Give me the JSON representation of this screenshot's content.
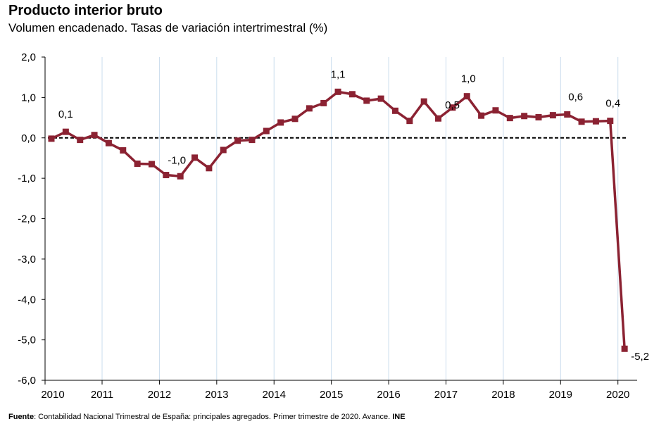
{
  "chart_data": {
    "type": "line",
    "title": "Producto interior bruto",
    "subtitle": "Volumen encadenado. Tasas de variación intertrimestral (%)",
    "ylim": [
      -6.0,
      2.0
    ],
    "y_ticks": [
      "2,0",
      "1,0",
      "0,0",
      "-1,0",
      "-2,0",
      "-3,0",
      "-4,0",
      "-5,0",
      "-6,0"
    ],
    "y_tick_values": [
      2,
      1,
      0,
      -1,
      -2,
      -3,
      -4,
      -5,
      -6
    ],
    "x_ticks": [
      "2010",
      "2011",
      "2012",
      "2013",
      "2014",
      "2015",
      "2016",
      "2017",
      "2018",
      "2019",
      "2020"
    ],
    "grid": "vertical",
    "reference_line": {
      "value": 0,
      "style": "dashed"
    },
    "color": "#8b2232",
    "series": [
      {
        "x": [
          "2010-T1",
          "2010-T2",
          "2010-T3",
          "2010-T4",
          "2011-T1",
          "2011-T2",
          "2011-T3",
          "2011-T4",
          "2012-T1",
          "2012-T2",
          "2012-T3",
          "2012-T4",
          "2013-T1",
          "2013-T2",
          "2013-T3",
          "2013-T4",
          "2014-T1",
          "2014-T2",
          "2014-T3",
          "2014-T4",
          "2015-T1",
          "2015-T2",
          "2015-T3",
          "2015-T4",
          "2016-T1",
          "2016-T2",
          "2016-T3",
          "2016-T4",
          "2017-T1",
          "2017-T2",
          "2017-T3",
          "2017-T4",
          "2018-T1",
          "2018-T2",
          "2018-T3",
          "2018-T4",
          "2019-T1",
          "2019-T2",
          "2019-T3",
          "2019-T4",
          "2020-T1"
        ],
        "values": [
          -0.02,
          0.15,
          -0.05,
          0.07,
          -0.13,
          -0.31,
          -0.64,
          -0.65,
          -0.92,
          -0.95,
          -0.49,
          -0.75,
          -0.3,
          -0.07,
          -0.05,
          0.17,
          0.38,
          0.47,
          0.73,
          0.86,
          1.14,
          1.08,
          0.92,
          0.97,
          0.67,
          0.42,
          0.9,
          0.48,
          0.75,
          1.03,
          0.55,
          0.68,
          0.49,
          0.54,
          0.51,
          0.56,
          0.58,
          0.4,
          0.41,
          0.42,
          -5.22
        ]
      }
    ],
    "data_labels": [
      {
        "index": 1,
        "text": "0,1"
      },
      {
        "index": 9,
        "text": "-1,0"
      },
      {
        "index": 20,
        "text": "1,1"
      },
      {
        "index": 27,
        "text": "0,5"
      },
      {
        "index": 29,
        "text": "1,0"
      },
      {
        "index": 36,
        "text": "0,6"
      },
      {
        "index": 39,
        "text": "0,4"
      },
      {
        "index": 40,
        "text": "-5,2"
      }
    ]
  },
  "source": {
    "label": "Fuente",
    "text": ": Contabilidad Nacional Trimestral de España: principales agregados. Primer trimestre de 2020. Avance.",
    "org": "INE"
  }
}
